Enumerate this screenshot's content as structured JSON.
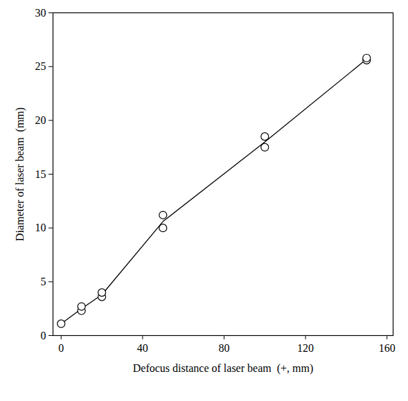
{
  "chart_data": {
    "type": "line",
    "x_label": "Defocus distance of laser beam  (+, mm)",
    "y_label": "Diameter of laser beam  (mm)",
    "x": [
      0,
      10,
      20,
      50,
      100,
      150
    ],
    "values": [
      1.1,
      2.5,
      3.8,
      10.6,
      18.0,
      25.7
    ],
    "color": "#000000",
    "line_style": "solid",
    "points": {
      "x": [
        0,
        10,
        10,
        20,
        20,
        50,
        50,
        100,
        100,
        150,
        150
      ],
      "y": [
        1.1,
        2.3,
        2.7,
        3.6,
        4.0,
        10.0,
        11.2,
        17.5,
        18.5,
        25.6,
        25.8
      ],
      "marker": "circle"
    },
    "xlim": [
      -4,
      163
    ],
    "xticks": [
      0,
      40,
      80,
      120,
      160
    ],
    "ylim": [
      0,
      30
    ],
    "yticks": [
      0,
      5,
      10,
      15,
      20,
      25,
      30
    ],
    "grid": false
  }
}
